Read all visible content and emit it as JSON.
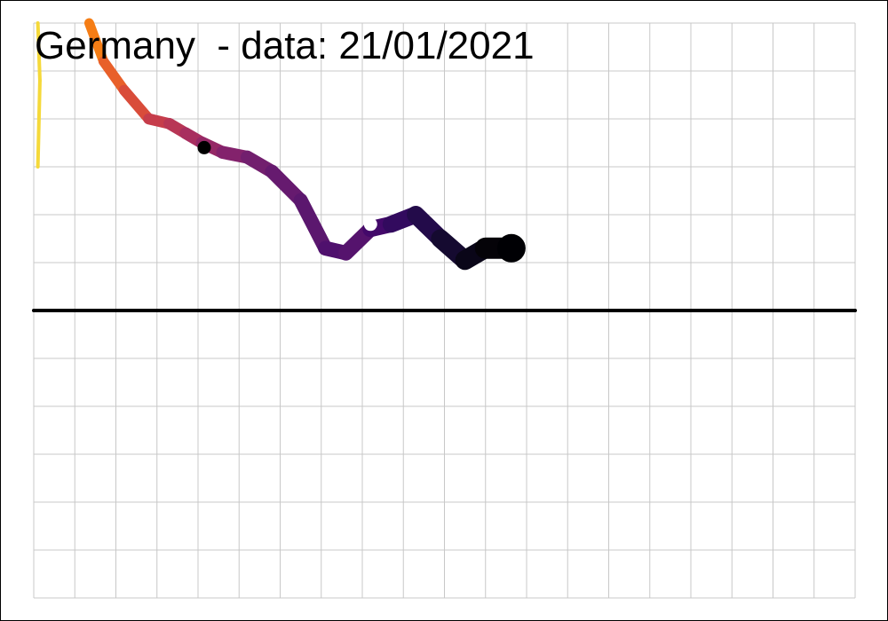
{
  "chart_data": {
    "type": "line",
    "title": "Germany  - data: 21/01/2021",
    "xlabel": "",
    "ylabel": "",
    "grid": true,
    "grid_color": "#c8c8c8",
    "baseline_color": "#000000",
    "xlim": [
      0,
      20
    ],
    "ylim": [
      -6,
      6
    ],
    "baseline_y": 0,
    "series": [
      {
        "values": [
          {
            "x": 0.1,
            "y": 6.0
          },
          {
            "x": 0.15,
            "y": 4.8
          },
          {
            "x": 0.1,
            "y": 3.0
          }
        ],
        "color": "#f5d93a",
        "width": 4
      },
      {
        "values": [
          {
            "x": 1.35,
            "y": 6.0
          },
          {
            "x": 1.7,
            "y": 5.2
          },
          {
            "x": 2.2,
            "y": 4.6
          },
          {
            "x": 2.8,
            "y": 4.0
          },
          {
            "x": 3.3,
            "y": 3.9
          },
          {
            "x": 3.7,
            "y": 3.7
          },
          {
            "x": 4.1,
            "y": 3.5
          },
          {
            "x": 4.6,
            "y": 3.3
          },
          {
            "x": 5.2,
            "y": 3.2
          },
          {
            "x": 5.8,
            "y": 2.9
          },
          {
            "x": 6.5,
            "y": 2.3
          },
          {
            "x": 7.1,
            "y": 1.3
          },
          {
            "x": 7.6,
            "y": 1.2
          },
          {
            "x": 8.2,
            "y": 1.7
          },
          {
            "x": 8.7,
            "y": 1.8
          },
          {
            "x": 9.3,
            "y": 2.0
          },
          {
            "x": 9.9,
            "y": 1.5
          },
          {
            "x": 10.5,
            "y": 1.05
          },
          {
            "x": 11.0,
            "y": 1.3
          },
          {
            "x": 11.5,
            "y": 1.3
          }
        ],
        "colors": [
          "#f57d15",
          "#e8602a",
          "#d94c3a",
          "#c63d4b",
          "#b83655",
          "#a82e5f",
          "#952866",
          "#83226c",
          "#721f6e",
          "#661a6f",
          "#5b176e",
          "#4f106d",
          "#55136d",
          "#43096a",
          "#320a5e",
          "#230b4a",
          "#150a30",
          "#0a0618",
          "#050308",
          "#000004"
        ],
        "widths": [
          11,
          11.5,
          12,
          12.5,
          13,
          13.5,
          14,
          14.5,
          15,
          15.5,
          16,
          16.5,
          17,
          18,
          19,
          20,
          21,
          22,
          24,
          26
        ]
      }
    ],
    "markers": [
      {
        "x": 4.15,
        "y": 3.4,
        "color": "#000000",
        "stroke": "#000000"
      },
      {
        "x": 8.2,
        "y": 1.8,
        "color": "#ffffff",
        "stroke": "#ffffff"
      }
    ]
  }
}
